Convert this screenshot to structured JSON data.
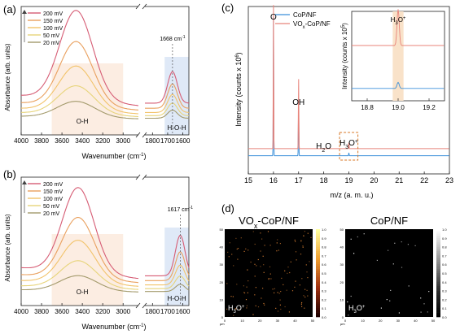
{
  "panels": {
    "a": {
      "letter": "(a)"
    },
    "b": {
      "letter": "(b)"
    },
    "c": {
      "letter": "(c)"
    },
    "d": {
      "letter": "(d)"
    }
  },
  "chart_data": [
    {
      "id": "a",
      "type": "line",
      "xlabel": "Wavenumber (cm",
      "xlabel_sup": "-1",
      "xlabel_end": ")",
      "ylabel": "Absorbance (arb. units)",
      "x_ticks": [
        "4000",
        "3800",
        "3600",
        "3400",
        "3200",
        "3000",
        "1800",
        "1700",
        "1600"
      ],
      "x_segments": [
        [
          4000,
          2850
        ],
        [
          1850,
          1560
        ]
      ],
      "annotation_peak": "1668 cm",
      "annotation_peak_sup": "-1",
      "peak_position": 1668,
      "region_labels": [
        "O-H",
        "H-O-H"
      ],
      "series": [
        {
          "name": "200 mV",
          "color": "#d65c74",
          "offset": 0.62,
          "amp": 1.0,
          "center": 3460,
          "width": 230,
          "tail": 0.28,
          "peak2": 0.35
        },
        {
          "name": "150 mV",
          "color": "#e9a05e",
          "offset": 0.48,
          "amp": 0.72,
          "center": 3460,
          "width": 230,
          "tail": 0.2,
          "peak2": 0.27
        },
        {
          "name": "100 mV",
          "color": "#f2c36a",
          "offset": 0.36,
          "amp": 0.5,
          "center": 3460,
          "width": 240,
          "tail": 0.15,
          "peak2": 0.2
        },
        {
          "name": "50 mV",
          "color": "#e7d47a",
          "offset": 0.27,
          "amp": 0.32,
          "center": 3460,
          "width": 250,
          "tail": 0.11,
          "peak2": 0.14
        },
        {
          "name": "20 mV",
          "color": "#a39a6b",
          "offset": 0.2,
          "amp": 0.18,
          "center": 3460,
          "width": 260,
          "tail": 0.07,
          "peak2": 0.09
        }
      ]
    },
    {
      "id": "b",
      "type": "line",
      "xlabel": "Wavenumber (cm",
      "xlabel_sup": "-1",
      "xlabel_end": ")",
      "ylabel": "Absorbance (arb. units)",
      "x_ticks": [
        "4000",
        "3800",
        "3600",
        "3400",
        "3200",
        "3000",
        "1800",
        "1700",
        "1600"
      ],
      "x_segments": [
        [
          4000,
          2850
        ],
        [
          1850,
          1560
        ]
      ],
      "annotation_peak": "1617 cm",
      "annotation_peak_sup": "-1",
      "peak_position": 1617,
      "region_labels": [
        "O-H",
        "H-O-H"
      ],
      "series": [
        {
          "name": "200 mV",
          "color": "#d65c74",
          "offset": 0.55,
          "amp": 0.95,
          "center": 3440,
          "width": 220,
          "tail": 0.3,
          "peak2": 0.45
        },
        {
          "name": "150 mV",
          "color": "#e9a05e",
          "offset": 0.42,
          "amp": 0.68,
          "center": 3440,
          "width": 225,
          "tail": 0.22,
          "peak2": 0.32
        },
        {
          "name": "100 mV",
          "color": "#f2c36a",
          "offset": 0.3,
          "amp": 0.48,
          "center": 3440,
          "width": 235,
          "tail": 0.16,
          "peak2": 0.22
        },
        {
          "name": "50 mV",
          "color": "#e7d47a",
          "offset": 0.2,
          "amp": 0.3,
          "center": 3440,
          "width": 245,
          "tail": 0.1,
          "peak2": 0.14
        },
        {
          "name": "20 mV",
          "color": "#a39a6b",
          "offset": 0.12,
          "amp": 0.17,
          "center": 3440,
          "width": 255,
          "tail": 0.06,
          "peak2": 0.08
        }
      ]
    },
    {
      "id": "c",
      "type": "line",
      "xlabel": "m/z (a. m. u.)",
      "ylabel": "Intensity (counts x 10",
      "ylabel_sup": "6",
      "ylabel_end": ")",
      "xlim": [
        15,
        23
      ],
      "x_ticks": [
        "15",
        "16",
        "17",
        "18",
        "19",
        "20",
        "21",
        "22",
        "23"
      ],
      "peak_labels": {
        "o": "O",
        "oh": "OH",
        "h2o": "H",
        "h2o_sub": "2",
        "h2o_end": "O",
        "h3o": "H",
        "h3o_sub": "3",
        "h3o_end": "O",
        "h3o_sup": "+"
      },
      "series": [
        {
          "name": "CoP/NF",
          "color": "#3a8fd9",
          "baseline": 0.1,
          "peaks": [
            [
              16,
              0.92
            ],
            [
              17,
              0.38
            ],
            [
              19,
              0.02
            ]
          ]
        },
        {
          "name": "VO",
          "name_sub": "x",
          "name_end": "-CoP/NF",
          "color": "#e8837a",
          "baseline": 0.16,
          "peaks": [
            [
              16,
              0.95
            ],
            [
              17,
              0.46
            ],
            [
              19,
              0.04
            ]
          ]
        }
      ],
      "inset": {
        "ylabel": "Intensity (counts x 10",
        "ylabel_sup": "5",
        "ylabel_end": ")",
        "title": "H",
        "title_sub": "3",
        "title_end": "O",
        "title_sup": "+",
        "xlim": [
          18.7,
          19.3
        ],
        "x_ticks": [
          "18.8",
          "19.0",
          "19.2"
        ],
        "peak_center": 19.0,
        "series": [
          {
            "name": "VOx-CoP/NF",
            "color": "#e8837a",
            "baseline": 0.6,
            "peak": 0.9
          },
          {
            "name": "CoP/NF",
            "color": "#3a8fd9",
            "baseline": 0.12,
            "peak": 0.15
          }
        ]
      }
    },
    {
      "id": "d",
      "type": "heatmap",
      "maps": [
        {
          "title": "VO",
          "title_sub": "x",
          "title_end": "-CoP/NF",
          "label": "H",
          "label_sub": "3",
          "label_end": "O",
          "label_sup": "+",
          "density": 0.55,
          "color": "#d07a30"
        },
        {
          "title": "CoP/NF",
          "title_sub": "",
          "title_end": "",
          "label": "H",
          "label_sub": "3",
          "label_end": "O",
          "label_sup": "+",
          "density": 0.12,
          "color": "#ffffff"
        }
      ],
      "axis_ticks": [
        "0",
        "10",
        "20",
        "30",
        "40",
        "50"
      ],
      "axis_unit": "μm",
      "colorbar_ticks": [
        "1.0",
        "0.9",
        "0.8",
        "0.7",
        "0.6",
        "0.5",
        "0.4",
        "0.3",
        "0.2",
        "0.1",
        "0.0"
      ]
    }
  ]
}
